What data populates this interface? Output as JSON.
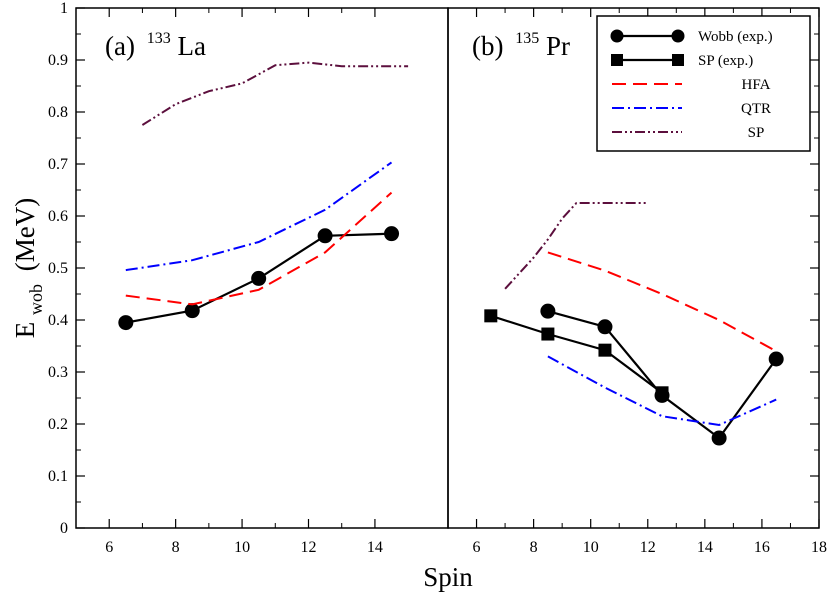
{
  "chart_data": [
    {
      "type": "line",
      "panel_label": "(a)",
      "nucleus_mass": "133",
      "nucleus_symbol": "La",
      "xlabel": "Spin",
      "ylabel_main": "E",
      "ylabel_sub": "wob",
      "ylabel_unit": "(MeV)",
      "xlim": [
        5,
        16.2
      ],
      "ylim": [
        0,
        1
      ],
      "x_ticks": [
        "6",
        "8",
        "10",
        "12",
        "14"
      ],
      "y_ticks": [
        "0",
        "0.1",
        "0.2",
        "0.3",
        "0.4",
        "0.5",
        "0.6",
        "0.7",
        "0.8",
        "0.9",
        "1"
      ],
      "grid": false,
      "series": [
        {
          "name": "Wobb (exp.)",
          "style": "solid-circle",
          "color": "#000000",
          "x": [
            6.5,
            8.5,
            10.5,
            12.5,
            14.5
          ],
          "y": [
            0.395,
            0.418,
            0.48,
            0.562,
            0.566
          ]
        },
        {
          "name": "HFA",
          "style": "dashed",
          "color": "#ff0000",
          "x": [
            6.5,
            8.5,
            10.5,
            12.5,
            14.5
          ],
          "y": [
            0.447,
            0.43,
            0.458,
            0.53,
            0.645
          ]
        },
        {
          "name": "QTR",
          "style": "dashdot",
          "color": "#0000ff",
          "x": [
            6.5,
            8.5,
            10.5,
            12.5,
            14.5
          ],
          "y": [
            0.496,
            0.515,
            0.55,
            0.612,
            0.703
          ]
        },
        {
          "name": "SP",
          "style": "dashdotdot",
          "color": "#5c0f3d",
          "x": [
            7.0,
            8.0,
            9.0,
            10.0,
            11.0,
            12.0,
            13.0,
            14.0,
            15.0
          ],
          "y": [
            0.775,
            0.815,
            0.84,
            0.855,
            0.89,
            0.895,
            0.888,
            0.888,
            0.888
          ]
        }
      ]
    },
    {
      "type": "line",
      "panel_label": "(b)",
      "nucleus_mass": "135",
      "nucleus_symbol": "Pr",
      "xlabel": "Spin",
      "xlim": [
        5,
        18
      ],
      "ylim": [
        0,
        1
      ],
      "x_ticks": [
        "6",
        "8",
        "10",
        "12",
        "14",
        "16",
        "18"
      ],
      "grid": false,
      "legend_position": "top-right",
      "series": [
        {
          "name": "Wobb (exp.)",
          "style": "solid-circle",
          "color": "#000000",
          "x": [
            8.5,
            10.5,
            12.5,
            14.5,
            16.5
          ],
          "y": [
            0.417,
            0.387,
            0.255,
            0.173,
            0.325
          ]
        },
        {
          "name": "SP (exp.)",
          "style": "solid-square",
          "color": "#000000",
          "x": [
            6.5,
            8.5,
            10.5,
            12.5
          ],
          "y": [
            0.408,
            0.373,
            0.342,
            0.26
          ]
        },
        {
          "name": "HFA",
          "style": "dashed",
          "color": "#ff0000",
          "x": [
            8.5,
            10.5,
            12.5,
            14.5,
            16.5
          ],
          "y": [
            0.53,
            0.495,
            0.45,
            0.4,
            0.34
          ]
        },
        {
          "name": "QTR",
          "style": "dashdot",
          "color": "#0000ff",
          "x": [
            8.5,
            10.5,
            12.5,
            14.5,
            16.5
          ],
          "y": [
            0.33,
            0.27,
            0.215,
            0.198,
            0.247
          ]
        },
        {
          "name": "SP",
          "style": "dashdotdot",
          "color": "#5c0f3d",
          "x": [
            7.0,
            8.0,
            8.5,
            9.0,
            9.5,
            10.0,
            11.0,
            12.0
          ],
          "y": [
            0.46,
            0.52,
            0.555,
            0.595,
            0.625,
            0.625,
            0.625,
            0.625
          ]
        }
      ]
    }
  ],
  "legend": {
    "entries": [
      {
        "label": "Wobb (exp.)",
        "style": "solid-circle",
        "color": "#000000"
      },
      {
        "label": "SP (exp.)",
        "style": "solid-square",
        "color": "#000000"
      },
      {
        "label": "HFA",
        "style": "dashed",
        "color": "#ff0000"
      },
      {
        "label": "QTR",
        "style": "dashdot",
        "color": "#0000ff"
      },
      {
        "label": "SP",
        "style": "dashdotdot",
        "color": "#5c0f3d"
      }
    ]
  }
}
